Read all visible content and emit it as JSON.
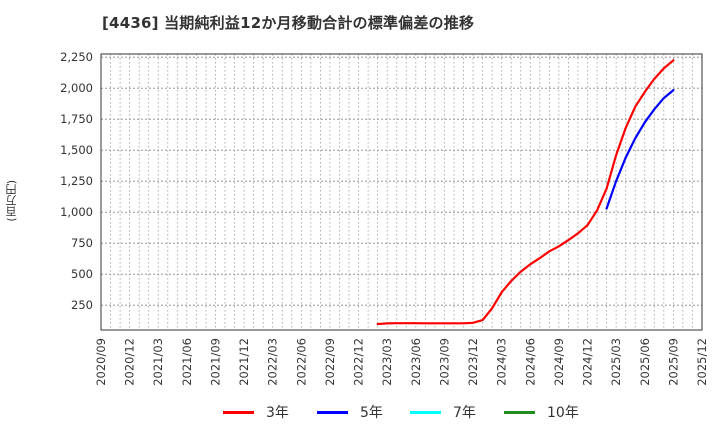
{
  "title": "[4436]  当期純利益12か月移動合計の標準偏差の推移",
  "y_axis_label": "(百万円)",
  "legend": [
    {
      "label": "3年",
      "color": "#ff0000"
    },
    {
      "label": "5年",
      "color": "#0000ff"
    },
    {
      "label": "7年",
      "color": "#00ffff"
    },
    {
      "label": "10年",
      "color": "#228b22"
    }
  ],
  "chart_data": {
    "type": "line",
    "title": "[4436]  当期純利益12か月移動合計の標準偏差の推移",
    "xlabel": "",
    "ylabel": "(百万円)",
    "ylim": [
      50,
      2275
    ],
    "yticks": [
      250,
      500,
      750,
      1000,
      1250,
      1500,
      1750,
      2000,
      2250
    ],
    "ytick_labels": [
      "250",
      "500",
      "750",
      "1,000",
      "1,250",
      "1,500",
      "1,750",
      "2,000",
      "2,250"
    ],
    "xlim": [
      "2020/09",
      "2025/12"
    ],
    "xtick_labels": [
      "2020/09",
      "2020/12",
      "2021/03",
      "2021/06",
      "2021/09",
      "2021/12",
      "2022/03",
      "2022/06",
      "2022/09",
      "2022/12",
      "2023/03",
      "2023/06",
      "2023/09",
      "2023/12",
      "2024/03",
      "2024/06",
      "2024/09",
      "2024/12",
      "2025/03",
      "2025/06",
      "2025/09",
      "2025/12"
    ],
    "grid": true,
    "legend_position": "bottom",
    "series": [
      {
        "name": "3年",
        "color": "#ff0000",
        "x": [
          "2023/02",
          "2023/03",
          "2023/04",
          "2023/05",
          "2023/06",
          "2023/07",
          "2023/08",
          "2023/09",
          "2023/10",
          "2023/11",
          "2023/12",
          "2024/01",
          "2024/02",
          "2024/03",
          "2024/04",
          "2024/05",
          "2024/06",
          "2024/07",
          "2024/08",
          "2024/09",
          "2024/10",
          "2024/11",
          "2024/12",
          "2025/01",
          "2025/02",
          "2025/03",
          "2025/04",
          "2025/05",
          "2025/06",
          "2025/07",
          "2025/08",
          "2025/09"
        ],
        "values": [
          98,
          103,
          105,
          105,
          105,
          104,
          104,
          104,
          104,
          104,
          108,
          130,
          225,
          355,
          445,
          520,
          580,
          630,
          685,
          725,
          775,
          830,
          895,
          1015,
          1190,
          1460,
          1680,
          1850,
          1970,
          2075,
          2160,
          2225
        ]
      },
      {
        "name": "5年",
        "color": "#0000ff",
        "x": [
          "2025/02",
          "2025/03",
          "2025/04",
          "2025/05",
          "2025/06",
          "2025/07",
          "2025/08",
          "2025/09"
        ],
        "values": [
          1030,
          1250,
          1440,
          1595,
          1725,
          1830,
          1920,
          1985
        ]
      },
      {
        "name": "7年",
        "color": "#00ffff",
        "x": [],
        "values": []
      },
      {
        "name": "10年",
        "color": "#228b22",
        "x": [],
        "values": []
      }
    ]
  }
}
